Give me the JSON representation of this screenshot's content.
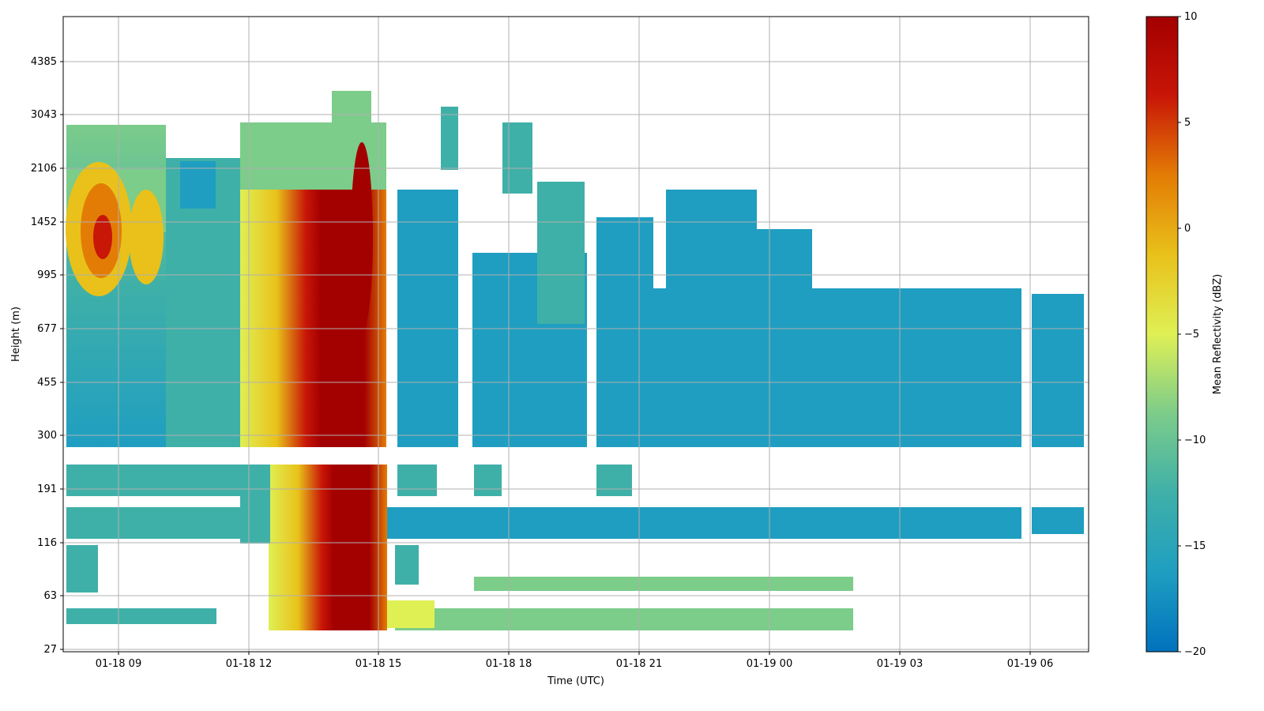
{
  "chart_data": {
    "type": "heatmap",
    "title": "",
    "xlabel": "Time (UTC)",
    "ylabel": "Height (m)",
    "x_range": [
      "2024-01-18T07:36",
      "2024-01-19T07:24"
    ],
    "x_ticks": [
      "01-18 09",
      "01-18 12",
      "01-18 15",
      "01-18 18",
      "01-18 21",
      "01-19 00",
      "01-19 03",
      "01-19 06"
    ],
    "y_scale": "log",
    "y_ticks": [
      "27",
      "63",
      "116",
      "191",
      "300",
      "455",
      "677",
      "995",
      "1452",
      "2106",
      "3043",
      "4385"
    ],
    "grid": true,
    "colorbar": {
      "label": "Mean Reflectivity (dBZ)",
      "range": [
        -20,
        10
      ],
      "ticks": [
        "10",
        "5",
        "0",
        "−5",
        "−10",
        "−15",
        "−20"
      ],
      "colors": [
        "#0072bd",
        "#1f9ec1",
        "#3fb0a8",
        "#7ccc8a",
        "#dff055",
        "#e9c11a",
        "#e37c05",
        "#c81607",
        "#a30000"
      ]
    },
    "gaps": [
      {
        "description": "no data between lower and upper range gates",
        "height_m": [
          232,
          262
        ]
      }
    ],
    "features": [
      {
        "name": "precipitation shaft",
        "time": [
          "01-18 13:30",
          "01-18 14:45"
        ],
        "peak_dbz": 10,
        "height_top_m": 3300
      },
      {
        "name": "early cloud core",
        "time": [
          "01-18 08:00",
          "01-18 10:30"
        ],
        "peak_dbz": 3,
        "height_m": [
          900,
          2200
        ]
      },
      {
        "name": "stratiform layer",
        "time": [
          "01-18 15:30",
          "01-19 07:15"
        ],
        "typical_dbz": -16,
        "height_top_m": 850
      }
    ]
  }
}
